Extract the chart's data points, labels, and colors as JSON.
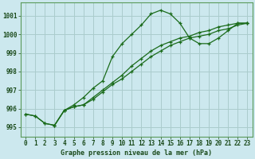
{
  "title": "Graphe pression niveau de la mer (hPa)",
  "background_color": "#cce8ee",
  "grid_color": "#aacccc",
  "line_color": "#1a6b1a",
  "spine_color": "#5a9a5a",
  "tick_color": "#1a4a1a",
  "xlim": [
    -0.5,
    23.5
  ],
  "ylim": [
    994.5,
    1001.7
  ],
  "yticks": [
    995,
    996,
    997,
    998,
    999,
    1000,
    1001
  ],
  "xticks": [
    0,
    1,
    2,
    3,
    4,
    5,
    6,
    7,
    8,
    9,
    10,
    11,
    12,
    13,
    14,
    15,
    16,
    17,
    18,
    19,
    20,
    21,
    22,
    23
  ],
  "series1_x": [
    0,
    1,
    2,
    3,
    4,
    5,
    6,
    7,
    8,
    9,
    10,
    11,
    12,
    13,
    14,
    15,
    16,
    17,
    18,
    19,
    20,
    21,
    22,
    23
  ],
  "series1_y": [
    995.7,
    995.6,
    995.2,
    995.1,
    995.9,
    996.2,
    996.6,
    997.1,
    997.5,
    998.8,
    999.5,
    1000.0,
    1000.5,
    1001.1,
    1001.3,
    1001.1,
    1000.6,
    999.8,
    999.5,
    999.5,
    999.8,
    1000.2,
    1000.6,
    1000.6
  ],
  "series2_x": [
    0,
    1,
    2,
    3,
    4,
    5,
    6,
    7,
    8,
    9,
    10,
    11,
    12,
    13,
    14,
    15,
    16,
    17,
    18,
    19,
    20,
    21,
    22,
    23
  ],
  "series2_y": [
    995.7,
    995.6,
    995.2,
    995.1,
    995.9,
    996.1,
    996.2,
    996.6,
    997.0,
    997.4,
    997.8,
    998.3,
    998.7,
    999.1,
    999.4,
    999.6,
    999.8,
    999.9,
    1000.1,
    1000.2,
    1000.4,
    1000.5,
    1000.6,
    1000.6
  ],
  "series3_x": [
    3,
    4,
    5,
    6,
    7,
    8,
    9,
    10,
    11,
    12,
    13,
    14,
    15,
    16,
    17,
    18,
    19,
    20,
    21,
    22,
    23
  ],
  "series3_y": [
    995.1,
    995.9,
    996.1,
    996.2,
    996.5,
    996.9,
    997.3,
    997.6,
    998.0,
    998.4,
    998.8,
    999.1,
    999.4,
    999.6,
    999.8,
    999.9,
    1000.0,
    1000.2,
    1000.3,
    1000.5,
    1000.6
  ]
}
